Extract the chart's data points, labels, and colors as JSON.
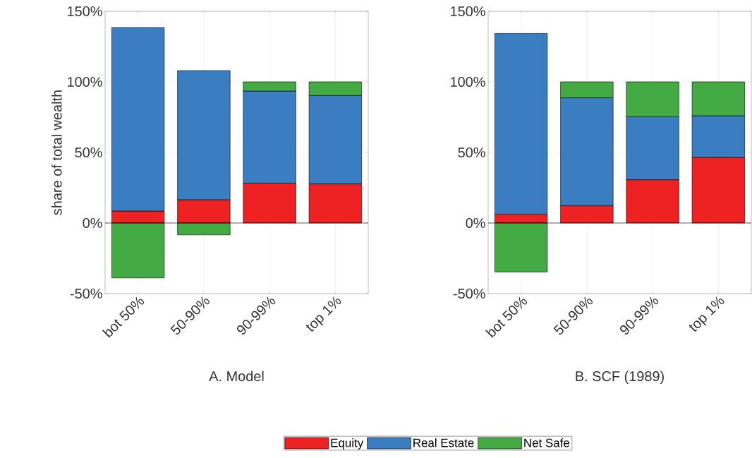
{
  "chart_data": [
    {
      "type": "bar",
      "title": "A. Model",
      "ylabel": "share of total wealth",
      "categories": [
        "bot 50%",
        "50-90%",
        "90-99%",
        "top 1%"
      ],
      "stacked": true,
      "ylim": [
        -50,
        150
      ],
      "yticks": [
        {
          "value": -50,
          "label": "-50%"
        },
        {
          "value": 0,
          "label": "0%"
        },
        {
          "value": 50,
          "label": "50%"
        },
        {
          "value": 100,
          "label": "100%"
        },
        {
          "value": 150,
          "label": "150%"
        }
      ],
      "grid": true,
      "legend": "bottom",
      "series": [
        {
          "name": "Equity",
          "color": "#ee2222",
          "values": [
            8.5,
            16.5,
            28.2,
            27.7
          ]
        },
        {
          "name": "Real Estate",
          "color": "#3a7dc0",
          "values": [
            130,
            91.5,
            65.3,
            62.6
          ]
        },
        {
          "name": "Net Safe",
          "color": "#44aa44",
          "values": [
            -38.9,
            -8.4,
            6.5,
            9.7
          ]
        }
      ]
    },
    {
      "type": "bar",
      "title": "B. SCF (1989)",
      "categories": [
        "bot 50%",
        "50-90%",
        "90-99%",
        "top 1%"
      ],
      "stacked": true,
      "ylim": [
        -50,
        150
      ],
      "yticks": [
        {
          "value": -50,
          "label": "-50%"
        },
        {
          "value": 0,
          "label": "0%"
        },
        {
          "value": 50,
          "label": "50%"
        },
        {
          "value": 100,
          "label": "100%"
        },
        {
          "value": 150,
          "label": "150%"
        }
      ],
      "grid": true,
      "series": [
        {
          "color": "#ee2222",
          "values": [
            6.3,
            12.2,
            30.7,
            46.5
          ]
        },
        {
          "color": "#3a7dc0",
          "values": [
            128,
            76.5,
            44.6,
            29.5
          ]
        },
        {
          "color": "#44aa44",
          "values": [
            -34.7,
            11.3,
            24.7,
            24
          ]
        }
      ]
    }
  ]
}
